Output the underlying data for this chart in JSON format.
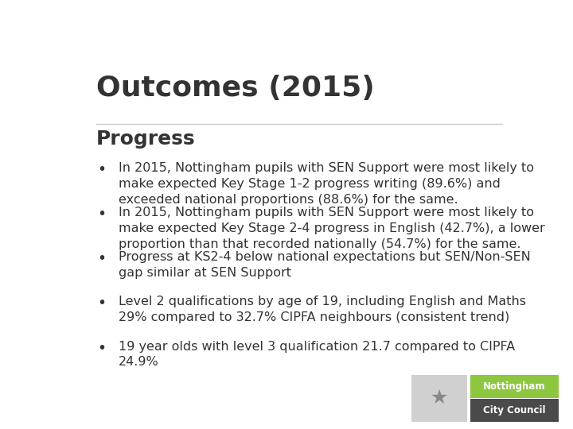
{
  "title": "Outcomes (2015)",
  "subtitle": "Progress",
  "background_color": "#ffffff",
  "title_color": "#333333",
  "subtitle_color": "#333333",
  "text_color": "#333333",
  "title_fontsize": 26,
  "subtitle_fontsize": 18,
  "bullet_fontsize": 11.5,
  "divider_color": "#cccccc",
  "logo_green": "#8dc63f",
  "logo_dark": "#4a4a4a",
  "bullets": [
    "In 2015, Nottingham pupils with SEN Support were most likely to\nmake expected Key Stage 1-2 progress writing (89.6%) and\nexceeded national proportions (88.6%) for the same.",
    "In 2015, Nottingham pupils with SEN Support were most likely to\nmake expected Key Stage 2-4 progress in English (42.7%), a lower\nproportion than that recorded nationally (54.7%) for the same.",
    "Progress at KS2-4 below national expectations but SEN/Non-SEN\ngap similar at SEN Support",
    "Level 2 qualifications by age of 19, including English and Maths\n29% compared to 32.7% CIPFA neighbours (consistent trend)",
    "19 year olds with level 3 qualification 21.7 compared to CIPFA\n24.9%"
  ]
}
